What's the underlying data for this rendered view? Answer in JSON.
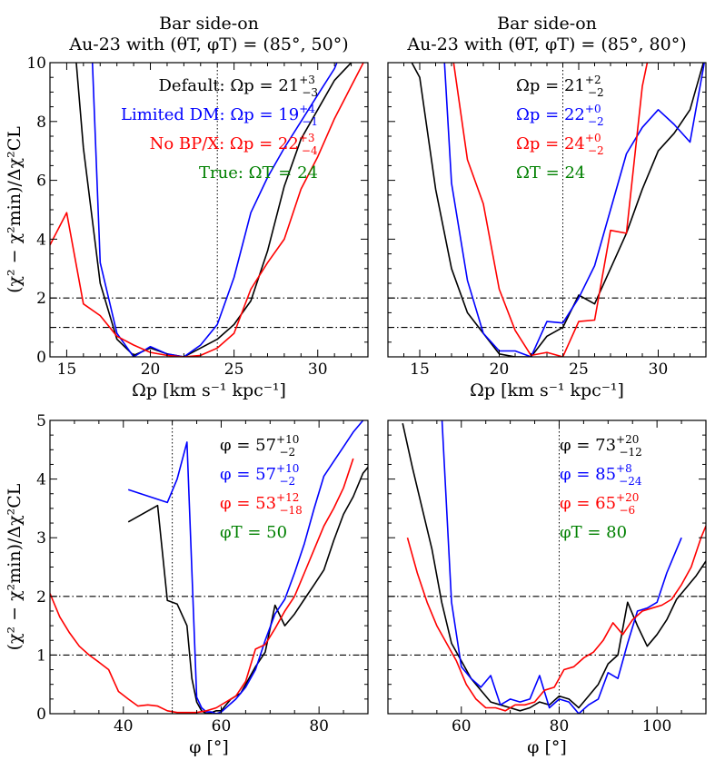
{
  "figure": {
    "titles": {
      "top_left_line1": "Bar side-on",
      "top_left_line2": "Au-23 with (θT, φT) = (85°, 50°)",
      "top_right_line1": "Bar side-on",
      "top_right_line2": "Au-23 with (θT, φT) = (85°, 80°)"
    },
    "ylabel": "(χ² − χ²min)/Δχ²CL",
    "xlabel_top": "Ωp [km s⁻¹ kpc⁻¹]",
    "xlabel_bottom": "φ [°]",
    "colors": {
      "default": "#000000",
      "limited_dm": "#0000ff",
      "no_bp": "#ff0000",
      "true": "#008000"
    }
  },
  "chart_data": [
    {
      "type": "line",
      "id": "top-left",
      "xlim": [
        14,
        33
      ],
      "ylim": [
        0,
        10
      ],
      "xticks": [
        15,
        20,
        25,
        30
      ],
      "yticks": [
        0,
        2,
        4,
        6,
        8,
        10
      ],
      "hlines": [
        1,
        2
      ],
      "vline": 24,
      "series": [
        {
          "name": "Default",
          "color": "#000000",
          "x": [
            15.5,
            16,
            17,
            18,
            19,
            20,
            21,
            22,
            23,
            24,
            25,
            26,
            27,
            28,
            29,
            30,
            31,
            32,
            33
          ],
          "y": [
            10.5,
            7.1,
            2.5,
            0.6,
            0.05,
            0.3,
            0.1,
            0.0,
            0.3,
            0.6,
            1.1,
            1.9,
            3.6,
            5.8,
            7.4,
            8.4,
            9.4,
            10.0,
            10.5
          ]
        },
        {
          "name": "Limited DM",
          "color": "#0000ff",
          "x": [
            16.5,
            17,
            18,
            19,
            20,
            21,
            22,
            23,
            24,
            25,
            26,
            27,
            28,
            29,
            30,
            31,
            31.5
          ],
          "y": [
            10.5,
            3.2,
            0.8,
            0.0,
            0.35,
            0.1,
            0.0,
            0.4,
            1.1,
            2.7,
            4.9,
            6.1,
            7.1,
            8.0,
            8.9,
            9.8,
            10.5
          ]
        },
        {
          "name": "No BP/X",
          "color": "#ff0000",
          "x": [
            14,
            15,
            16,
            17,
            18,
            19,
            20,
            21,
            22,
            23,
            24,
            25,
            26,
            27,
            28,
            29,
            30,
            31,
            32,
            33
          ],
          "y": [
            3.8,
            4.9,
            1.8,
            1.4,
            0.7,
            0.4,
            0.15,
            0.05,
            0.0,
            0.05,
            0.3,
            0.8,
            2.3,
            3.2,
            4.0,
            5.7,
            6.8,
            8.1,
            9.2,
            10.3
          ]
        }
      ],
      "annotations": [
        {
          "text_main": "Default: Ωp = 21",
          "sup": "+3",
          "sub": "−3",
          "color": "#000000"
        },
        {
          "text_main": "Limited DM: Ωp = 19",
          "sup": "+4",
          "sub": "−1",
          "color": "#0000ff"
        },
        {
          "text_main": "No BP/X: Ωp = 22",
          "sup": "+3",
          "sub": "−4",
          "color": "#ff0000"
        },
        {
          "text_main": "True: ΩT = 24",
          "sup": "",
          "sub": "",
          "color": "#008000"
        }
      ]
    },
    {
      "type": "line",
      "id": "top-right",
      "xlim": [
        13,
        33
      ],
      "ylim": [
        0,
        10
      ],
      "xticks": [
        15,
        20,
        25,
        30
      ],
      "yticks": [
        0,
        2,
        4,
        6,
        8,
        10
      ],
      "hlines": [
        1,
        2
      ],
      "vline": 24,
      "series": [
        {
          "name": "Default",
          "color": "#000000",
          "x": [
            14,
            15,
            16,
            17,
            18,
            19,
            20,
            21,
            22,
            23,
            24,
            25,
            26,
            27,
            28,
            29,
            30,
            31,
            32,
            33
          ],
          "y": [
            10.5,
            9.5,
            5.7,
            3.0,
            1.5,
            0.8,
            0.1,
            0.0,
            0.0,
            0.7,
            1.0,
            2.1,
            1.8,
            3.0,
            4.2,
            5.7,
            7.0,
            7.6,
            8.4,
            10.3
          ]
        },
        {
          "name": "Limited DM",
          "color": "#0000ff",
          "x": [
            16.5,
            17,
            18,
            19,
            20,
            21,
            22,
            23,
            24,
            25,
            26,
            27,
            28,
            29,
            30,
            31,
            32,
            33
          ],
          "y": [
            10.5,
            5.9,
            2.6,
            0.8,
            0.2,
            0.2,
            0.0,
            1.2,
            1.15,
            2.0,
            3.1,
            5.0,
            6.9,
            7.8,
            8.4,
            7.9,
            7.3,
            10.3
          ]
        },
        {
          "name": "No BP/X",
          "color": "#ff0000",
          "x": [
            17,
            18,
            19,
            20,
            21,
            22,
            23,
            24,
            25,
            26,
            27,
            28,
            29,
            29.5
          ],
          "y": [
            10.5,
            6.7,
            5.2,
            2.3,
            0.9,
            0.05,
            0.15,
            0.0,
            1.2,
            1.25,
            4.3,
            4.2,
            9.2,
            10.5
          ]
        }
      ],
      "annotations": [
        {
          "text_main": "Ωp = 21",
          "sup": "+2",
          "sub": "−2",
          "color": "#000000"
        },
        {
          "text_main": "Ωp = 22",
          "sup": "+0",
          "sub": "−2",
          "color": "#0000ff"
        },
        {
          "text_main": "Ωp = 24",
          "sup": "+0",
          "sub": "−2",
          "color": "#ff0000"
        },
        {
          "text_main": "ΩT = 24",
          "sup": "",
          "sub": "",
          "color": "#008000"
        }
      ]
    },
    {
      "type": "line",
      "id": "bottom-left",
      "xlim": [
        25,
        90
      ],
      "ylim": [
        0,
        5
      ],
      "xticks": [
        40,
        60,
        80
      ],
      "yticks": [
        0,
        1,
        2,
        3,
        4,
        5
      ],
      "hlines": [
        1,
        2
      ],
      "vline": 50,
      "series": [
        {
          "name": "Default",
          "color": "#000000",
          "x": [
            41,
            47,
            49,
            51,
            53,
            54,
            55,
            56,
            57,
            58,
            59,
            60,
            61,
            62,
            63,
            64,
            65,
            67,
            69,
            71,
            73,
            75,
            77,
            79,
            81,
            83,
            85,
            87,
            89,
            90
          ],
          "y": [
            3.27,
            3.55,
            1.93,
            1.87,
            1.5,
            0.6,
            0.2,
            0.05,
            0.0,
            0.02,
            0.05,
            0.05,
            0.15,
            0.25,
            0.3,
            0.35,
            0.5,
            0.8,
            1.05,
            1.85,
            1.5,
            1.7,
            1.95,
            2.2,
            2.45,
            2.95,
            3.4,
            3.7,
            4.1,
            4.2
          ]
        },
        {
          "name": "Limited DM",
          "color": "#0000ff",
          "x": [
            41,
            49,
            51,
            53,
            55,
            56,
            57,
            58,
            59,
            60,
            61,
            63,
            65,
            67,
            69,
            71,
            73,
            75,
            77,
            79,
            81,
            83,
            85,
            87,
            89
          ],
          "y": [
            3.82,
            3.6,
            4.0,
            4.63,
            0.28,
            0.1,
            0.03,
            0.03,
            0.0,
            0.03,
            0.1,
            0.25,
            0.45,
            0.75,
            1.25,
            1.7,
            1.95,
            2.4,
            2.9,
            3.5,
            4.05,
            4.3,
            4.55,
            4.8,
            5.0
          ]
        },
        {
          "name": "No BP/X",
          "color": "#ff0000",
          "x": [
            25,
            27,
            29,
            31,
            33,
            35,
            37,
            39,
            41,
            43,
            45,
            47,
            49,
            51,
            53,
            55,
            57,
            59,
            61,
            63,
            65,
            67,
            69,
            71,
            73,
            75,
            77,
            79,
            81,
            83,
            85,
            87
          ],
          "y": [
            2.05,
            1.65,
            1.38,
            1.15,
            1.0,
            0.88,
            0.75,
            0.38,
            0.25,
            0.13,
            0.15,
            0.13,
            0.05,
            0.02,
            0.02,
            0.02,
            0.05,
            0.1,
            0.2,
            0.3,
            0.55,
            1.1,
            1.18,
            1.45,
            1.75,
            2.0,
            2.4,
            2.8,
            3.2,
            3.5,
            3.85,
            4.35
          ]
        }
      ],
      "annotations": [
        {
          "text_main": "φ = 57",
          "sup": "+10",
          "sub": "−2",
          "color": "#000000"
        },
        {
          "text_main": "φ = 57",
          "sup": "+10",
          "sub": "−2",
          "color": "#0000ff"
        },
        {
          "text_main": "φ = 53",
          "sup": "+12",
          "sub": "−18",
          "color": "#ff0000"
        },
        {
          "text_main": "φT = 50",
          "sup": "",
          "sub": "",
          "color": "#008000"
        }
      ]
    },
    {
      "type": "line",
      "id": "bottom-right",
      "xlim": [
        45,
        110
      ],
      "ylim": [
        0,
        5
      ],
      "xticks": [
        60,
        80,
        100
      ],
      "yticks": [
        0,
        1,
        2,
        3,
        4,
        5
      ],
      "hlines": [
        1,
        2
      ],
      "vline": 80,
      "series": [
        {
          "name": "Default",
          "color": "#000000",
          "x": [
            48,
            50,
            52,
            54,
            56,
            58,
            60,
            62,
            64,
            66,
            68,
            70,
            72,
            74,
            76,
            78,
            80,
            82,
            84,
            86,
            88,
            90,
            92,
            94,
            96,
            98,
            100,
            102,
            104,
            106,
            108,
            110
          ],
          "y": [
            4.95,
            4.2,
            3.5,
            2.8,
            1.9,
            1.2,
            0.9,
            0.6,
            0.4,
            0.2,
            0.15,
            0.1,
            0.05,
            0.1,
            0.2,
            0.15,
            0.3,
            0.25,
            0.1,
            0.3,
            0.5,
            0.85,
            1.0,
            1.9,
            1.5,
            1.15,
            1.35,
            1.6,
            1.95,
            2.15,
            2.35,
            2.6
          ]
        },
        {
          "name": "Limited DM",
          "color": "#0000ff",
          "x": [
            56,
            58,
            60,
            62,
            64,
            66,
            68,
            70,
            72,
            74,
            76,
            78,
            80,
            82,
            84,
            86,
            88,
            90,
            92,
            94,
            96,
            98,
            100,
            102,
            104,
            105
          ],
          "y": [
            5.1,
            1.9,
            0.8,
            0.6,
            0.45,
            0.65,
            0.15,
            0.25,
            0.2,
            0.25,
            0.65,
            0.1,
            0.25,
            0.2,
            0.0,
            0.15,
            0.25,
            0.7,
            0.6,
            1.2,
            1.75,
            1.8,
            1.9,
            2.4,
            2.8,
            3.0
          ]
        },
        {
          "name": "No BP/X",
          "color": "#ff0000",
          "x": [
            49,
            51,
            53,
            55,
            57,
            59,
            61,
            63,
            65,
            67,
            69,
            71,
            73,
            75,
            77,
            79,
            81,
            83,
            85,
            87,
            89,
            91,
            93,
            95,
            97,
            99,
            101,
            103,
            105,
            107,
            109,
            110
          ],
          "y": [
            3.0,
            2.4,
            1.9,
            1.5,
            1.2,
            0.9,
            0.5,
            0.25,
            0.1,
            0.1,
            0.05,
            0.15,
            0.15,
            0.2,
            0.4,
            0.45,
            0.75,
            0.8,
            0.95,
            1.05,
            1.25,
            1.55,
            1.35,
            1.6,
            1.75,
            1.8,
            1.85,
            1.95,
            2.2,
            2.5,
            3.0,
            3.2
          ]
        }
      ],
      "annotations": [
        {
          "text_main": "φ = 73",
          "sup": "+20",
          "sub": "−12",
          "color": "#000000"
        },
        {
          "text_main": "φ = 85",
          "sup": "+8",
          "sub": "−24",
          "color": "#0000ff"
        },
        {
          "text_main": "φ = 65",
          "sup": "+20",
          "sub": "−6",
          "color": "#ff0000"
        },
        {
          "text_main": "φT = 80",
          "sup": "",
          "sub": "",
          "color": "#008000"
        }
      ]
    }
  ]
}
